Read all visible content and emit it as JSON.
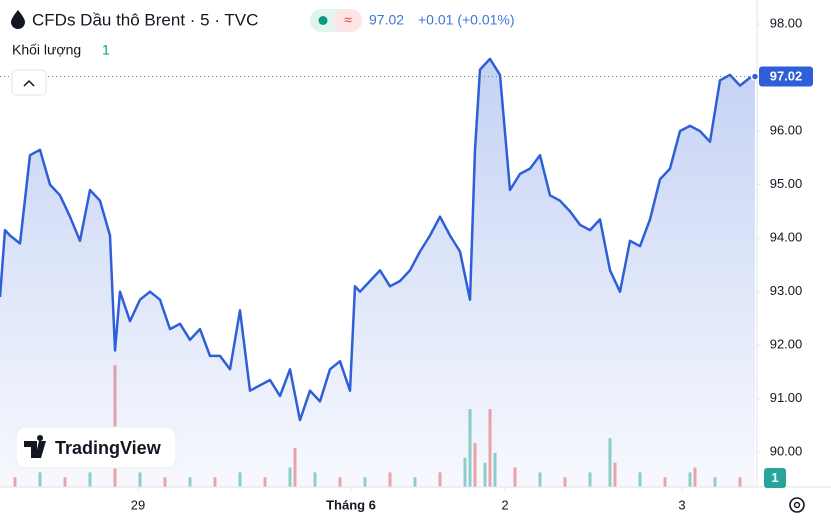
{
  "chart_data": {
    "type": "area",
    "title": "CFDs Dầu thô Brent · 5 · TVC",
    "price_label": "97.02",
    "change_label": "+0.01 (+0.01%)",
    "volume_title": "Khối lượng",
    "volume_length": "1",
    "brand": "TradingView",
    "xlim": [
      0,
      151.4
    ],
    "xticks": [
      {
        "value": 27.6,
        "label": "29"
      },
      {
        "value": 70.2,
        "label": "Tháng 6"
      },
      {
        "value": 101,
        "label": "2"
      },
      {
        "value": 136.4,
        "label": "3"
      }
    ],
    "ylim": [
      89.35,
      98.45
    ],
    "yticks": [
      {
        "value": 90,
        "label": "90.00"
      },
      {
        "value": 91,
        "label": "91.00"
      },
      {
        "value": 92,
        "label": "92.00"
      },
      {
        "value": 93,
        "label": "93.00"
      },
      {
        "value": 94,
        "label": "94.00"
      },
      {
        "value": 95,
        "label": "95.00"
      },
      {
        "value": 96,
        "label": "96.00"
      },
      {
        "value": 97,
        "label": "97.00"
      },
      {
        "value": 98,
        "label": "98.00"
      }
    ],
    "y2lim": [
      0,
      100
    ],
    "series": [
      {
        "color": "#2f5fd8",
        "x": [
          0,
          1,
          2,
          4,
          6,
          8,
          10,
          12,
          14,
          16,
          18,
          20,
          22,
          23,
          24,
          26,
          28,
          30,
          32,
          34,
          36,
          38,
          40,
          42,
          44,
          46,
          48,
          50,
          52,
          54,
          56,
          58,
          60,
          62,
          64,
          66,
          68,
          70,
          71,
          72,
          74,
          76,
          78,
          80,
          82,
          84,
          86,
          88,
          90,
          92,
          94,
          95,
          96,
          98,
          100,
          102,
          104,
          106,
          108,
          110,
          112,
          114,
          116,
          118,
          120,
          122,
          124,
          126,
          128,
          130,
          132,
          134,
          136,
          138,
          140,
          142,
          144,
          146,
          148,
          150,
          151
        ],
        "values": [
          92.9,
          94.15,
          94.05,
          93.9,
          95.55,
          95.65,
          95.0,
          94.8,
          94.4,
          93.95,
          94.9,
          94.7,
          94.05,
          91.9,
          93.0,
          92.45,
          92.85,
          93.0,
          92.85,
          92.3,
          92.4,
          92.1,
          92.3,
          91.8,
          91.8,
          91.55,
          92.65,
          91.15,
          91.25,
          91.35,
          91.05,
          91.55,
          90.6,
          91.15,
          90.95,
          91.55,
          91.7,
          91.15,
          93.1,
          93.0,
          93.2,
          93.4,
          93.1,
          93.2,
          93.4,
          93.75,
          94.05,
          94.4,
          94.05,
          93.75,
          92.85,
          95.65,
          97.15,
          97.35,
          97.05,
          94.9,
          95.2,
          95.3,
          95.55,
          94.8,
          94.7,
          94.5,
          94.25,
          94.15,
          94.35,
          93.4,
          93.0,
          93.95,
          93.85,
          94.35,
          95.1,
          95.3,
          96.0,
          96.1,
          96.0,
          95.8,
          96.95,
          97.05,
          96.85,
          97.0,
          97.02
        ]
      },
      {
        "axis": "y2",
        "x": [
          3,
          8,
          13,
          18,
          23,
          28,
          33,
          38,
          43,
          48,
          53,
          58,
          59,
          63,
          68,
          73,
          78,
          83,
          88,
          93,
          94,
          95,
          97,
          98,
          99,
          103,
          108,
          113,
          118,
          122,
          123,
          128,
          133,
          138,
          139,
          143,
          148
        ],
        "values": [
          2,
          3,
          2,
          3,
          25,
          3,
          2,
          2,
          2,
          3,
          2,
          4,
          8,
          3,
          2,
          2,
          3,
          2,
          3,
          6,
          16,
          9,
          5,
          16,
          7,
          4,
          3,
          2,
          3,
          10,
          5,
          3,
          2,
          3,
          4,
          2,
          2
        ],
        "colors": [
          "#f4a6a6",
          "#8fd3c9",
          "#f4a6a6",
          "#8fd3c9",
          "#f4a6a6",
          "#8fd3c9",
          "#f4a6a6",
          "#8fd3c9",
          "#f4a6a6",
          "#8fd3c9",
          "#f4a6a6",
          "#8fd3c9",
          "#f4a6a6",
          "#8fd3c9",
          "#f4a6a6",
          "#8fd3c9",
          "#f4a6a6",
          "#8fd3c9",
          "#f4a6a6",
          "#8fd3c9",
          "#8fd3c9",
          "#f4a6a6",
          "#8fd3c9",
          "#f4a6a6",
          "#8fd3c9",
          "#f4a6a6",
          "#8fd3c9",
          "#f4a6a6",
          "#8fd3c9",
          "#8fd3c9",
          "#f4a6a6",
          "#8fd3c9",
          "#f4a6a6",
          "#8fd3c9",
          "#f4a6a6",
          "#8fd3c9",
          "#f4a6a6"
        ]
      }
    ]
  }
}
